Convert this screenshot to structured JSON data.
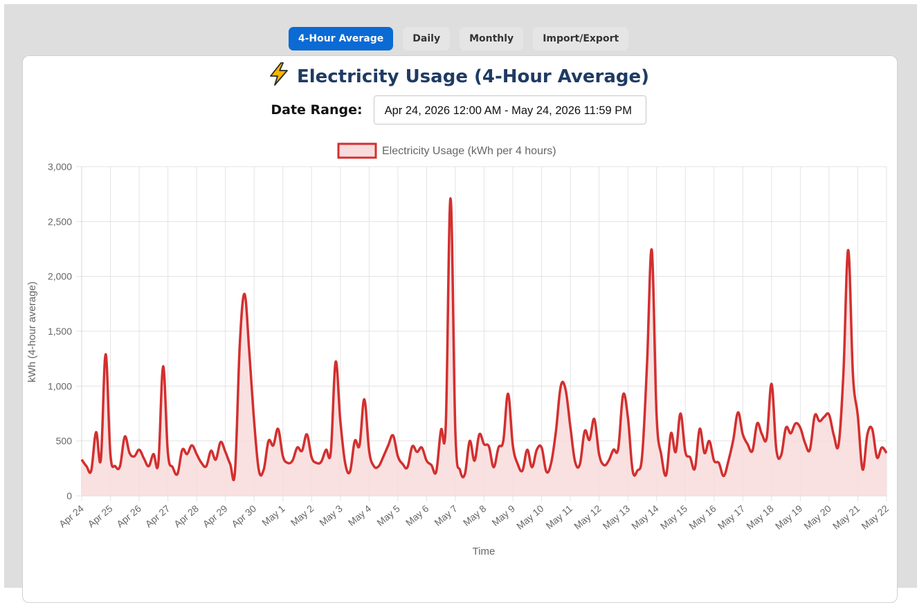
{
  "tabs": [
    {
      "label": "4-Hour Average",
      "active": true
    },
    {
      "label": "Daily",
      "active": false
    },
    {
      "label": "Monthly",
      "active": false
    },
    {
      "label": "Import/Export",
      "active": false
    }
  ],
  "header": {
    "icon": "lightning-bolt-icon",
    "title": "Electricity Usage (4-Hour Average)"
  },
  "date_range": {
    "label": "Date Range:",
    "value": "Apr 24, 2026 12:00 AM - May 24, 2026 11:59 PM"
  },
  "colors": {
    "accent": "#0b6ad4",
    "line": "#d32f2f",
    "fill": "#f8dcdc",
    "title": "#1f3b63"
  },
  "chart_data": {
    "type": "area",
    "legend": {
      "label": "Electricity Usage (kWh per 4 hours)",
      "position": "top"
    },
    "xlabel": "Time",
    "ylabel": "kWh (4-hour average)",
    "ylim": [
      0,
      3000
    ],
    "yticks": [
      0,
      500,
      1000,
      1500,
      2000,
      2500,
      3000
    ],
    "ytick_labels": [
      "0",
      "500",
      "1,000",
      "1,500",
      "2,000",
      "2,500",
      "3,000"
    ],
    "xticks": [
      "Apr 24",
      "Apr 25",
      "Apr 26",
      "Apr 27",
      "Apr 28",
      "Apr 29",
      "Apr 30",
      "May 1",
      "May 2",
      "May 3",
      "May 4",
      "May 5",
      "May 6",
      "May 7",
      "May 8",
      "May 9",
      "May 10",
      "May 11",
      "May 12",
      "May 13",
      "May 14",
      "May 15",
      "May 16",
      "May 17",
      "May 18",
      "May 19",
      "May 20",
      "May 21",
      "May 22"
    ],
    "grid": true,
    "series": [
      {
        "name": "Electricity Usage (kWh per 4 hours)",
        "values": [
          330,
          270,
          230,
          580,
          330,
          1290,
          380,
          270,
          270,
          540,
          390,
          360,
          420,
          340,
          270,
          380,
          300,
          1180,
          390,
          260,
          200,
          420,
          380,
          460,
          380,
          300,
          270,
          410,
          330,
          490,
          400,
          290,
          220,
          1370,
          1840,
          1300,
          680,
          230,
          240,
          500,
          460,
          610,
          360,
          300,
          320,
          440,
          410,
          560,
          350,
          300,
          310,
          420,
          400,
          1220,
          680,
          300,
          220,
          500,
          460,
          880,
          410,
          270,
          270,
          360,
          460,
          550,
          360,
          290,
          260,
          450,
          400,
          440,
          320,
          280,
          220,
          600,
          640,
          2710,
          580,
          230,
          200,
          500,
          320,
          560,
          470,
          450,
          260,
          440,
          500,
          930,
          460,
          290,
          230,
          420,
          260,
          420,
          440,
          220,
          300,
          590,
          1000,
          970,
          630,
          310,
          290,
          590,
          510,
          700,
          380,
          280,
          320,
          420,
          430,
          920,
          720,
          230,
          230,
          370,
          1200,
          2240,
          740,
          370,
          190,
          570,
          400,
          750,
          400,
          350,
          250,
          610,
          390,
          500,
          320,
          300,
          180,
          320,
          510,
          760,
          560,
          470,
          410,
          660,
          560,
          530,
          1020,
          420,
          370,
          620,
          570,
          660,
          620,
          480,
          420,
          730,
          680,
          720,
          740,
          550,
          470,
          1120,
          2240,
          1100,
          730,
          240,
          560,
          610,
          350,
          440,
          390
        ]
      }
    ]
  }
}
